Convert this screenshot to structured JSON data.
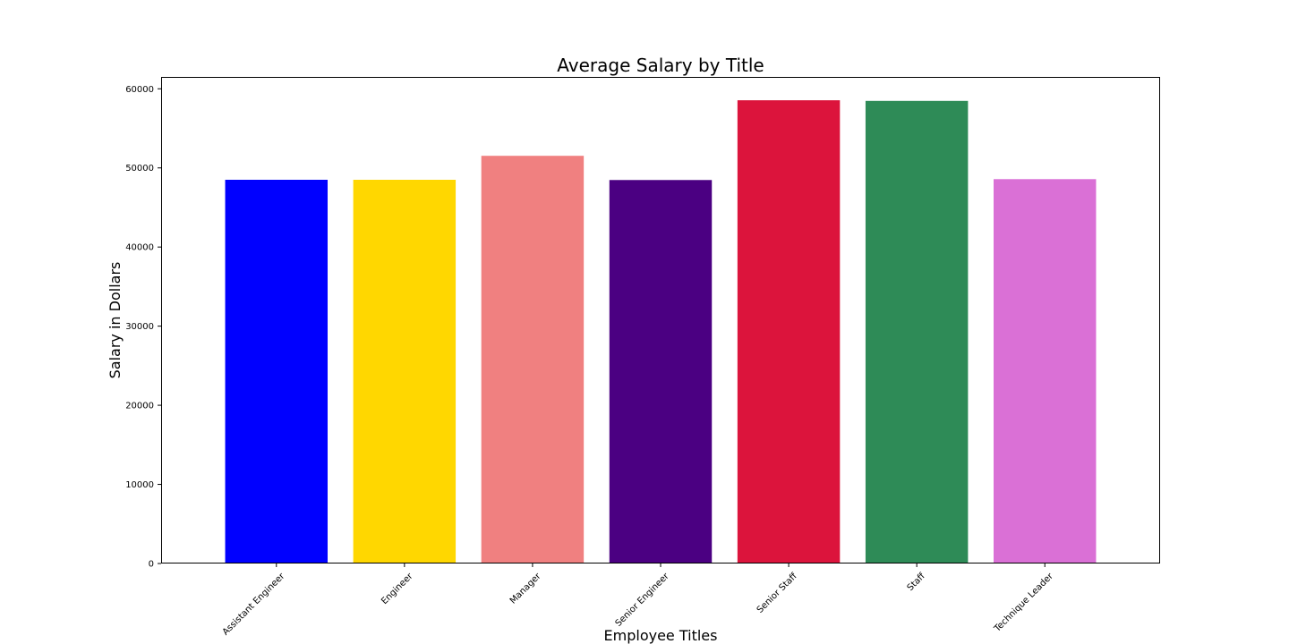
{
  "chart_data": {
    "type": "bar",
    "title": "Average Salary by Title",
    "xlabel": "Employee Titles",
    "ylabel": "Salary in Dollars",
    "categories": [
      "Assistant Engineer",
      "Engineer",
      "Manager",
      "Senior Engineer",
      "Senior Staff",
      "Staff",
      "Technique Leader"
    ],
    "values": [
      48500,
      48500,
      51530,
      48470,
      58550,
      58470,
      48580
    ],
    "colors": [
      "#0000ff",
      "#ffd700",
      "#f08080",
      "#4b0082",
      "#dc143c",
      "#2e8b57",
      "#da70d6"
    ],
    "ylim": [
      0,
      61500
    ],
    "yticks": [
      0,
      10000,
      20000,
      30000,
      40000,
      50000,
      60000
    ],
    "ytick_labels": [
      "0",
      "10000",
      "20000",
      "30000",
      "40000",
      "50000",
      "60000"
    ],
    "grid": false,
    "legend": "none"
  }
}
